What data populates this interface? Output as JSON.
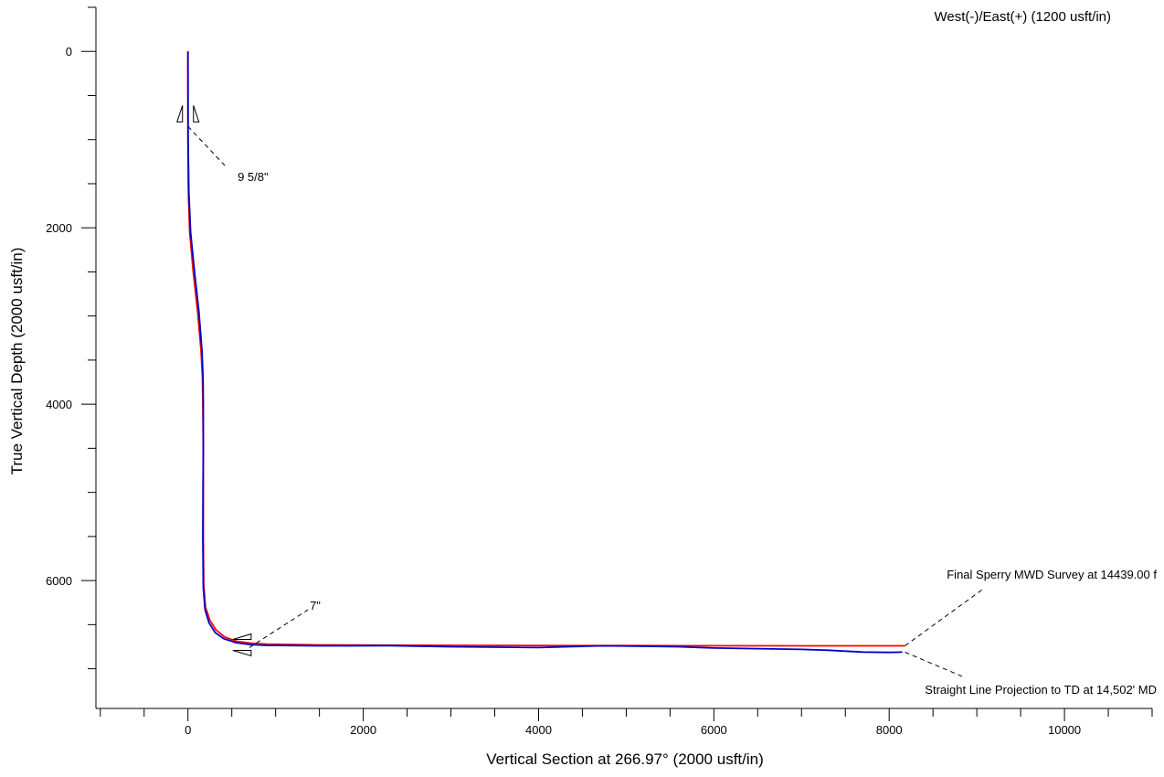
{
  "chart_data": {
    "type": "line",
    "title": "",
    "xlabel": "Vertical Section at 266.97° (2000 usft/in)",
    "ylabel": "True Vertical Depth (2000 usft/in)",
    "corner_label": "West(-)/East(+) (1200 usft/in)",
    "xlim": [
      -1050,
      11000
    ],
    "ylim": [
      7450,
      -500
    ],
    "y_inverted": true,
    "grid": false,
    "x_ticks": [
      0,
      2000,
      4000,
      6000,
      8000,
      10000
    ],
    "x_tick_labels": [
      "0",
      "2000",
      "4000",
      "6000",
      "8000",
      "10000"
    ],
    "y_ticks": [
      0,
      2000,
      4000,
      6000
    ],
    "y_tick_labels": [
      "0",
      "2000",
      "4000",
      "6000"
    ],
    "x_minor_step": 500,
    "y_minor_step": 500,
    "series": [
      {
        "color": "#ff0000",
        "x": [
          0,
          0,
          5,
          20,
          60,
          110,
          150,
          165,
          170,
          175,
          175,
          175,
          180,
          200,
          250,
          320,
          420,
          560,
          720,
          900,
          1500,
          3000,
          5000,
          7000,
          8180
        ],
        "y": [
          0,
          1000,
          1600,
          2050,
          2500,
          2950,
          3400,
          3700,
          4000,
          4500,
          5000,
          5500,
          6050,
          6300,
          6450,
          6560,
          6640,
          6690,
          6710,
          6720,
          6730,
          6735,
          6738,
          6740,
          6740
        ]
      },
      {
        "color": "#0000cc",
        "x": [
          0,
          2,
          10,
          30,
          75,
          125,
          160,
          172,
          175,
          175,
          172,
          170,
          175,
          195,
          240,
          310,
          410,
          550,
          710,
          900,
          1500,
          2300,
          3000,
          4000,
          4700,
          5000,
          5600,
          6000,
          7000,
          7300,
          7700,
          8000,
          8150
        ],
        "y": [
          0,
          1000,
          1600,
          2050,
          2500,
          2950,
          3400,
          3700,
          4000,
          4500,
          5000,
          5500,
          6080,
          6330,
          6480,
          6590,
          6660,
          6705,
          6725,
          6735,
          6740,
          6738,
          6750,
          6760,
          6740,
          6742,
          6750,
          6765,
          6780,
          6790,
          6810,
          6815,
          6812
        ]
      }
    ],
    "annotations": [
      {
        "text": "9 5/8\"",
        "anchor": [
          0,
          850
        ],
        "label_at": [
          650,
          1420
        ]
      },
      {
        "text": "7\"",
        "anchor": [
          700,
          6760
        ],
        "label_at": [
          1390,
          6290
        ]
      },
      {
        "text": "Final Sperry MWD Survey at 14439.00 f",
        "anchor": [
          8180,
          6740
        ],
        "label_at": [
          9270,
          6000
        ]
      },
      {
        "text": "Straight Line Projection to TD at 14,502' MD",
        "anchor": [
          8180,
          6812
        ],
        "label_at": [
          8860,
          7160
        ]
      }
    ],
    "casing_markers": [
      {
        "name": "9 5/8\"",
        "x": 0,
        "y": 800
      },
      {
        "name": "7\"",
        "x": 700,
        "y": 6750
      }
    ]
  }
}
